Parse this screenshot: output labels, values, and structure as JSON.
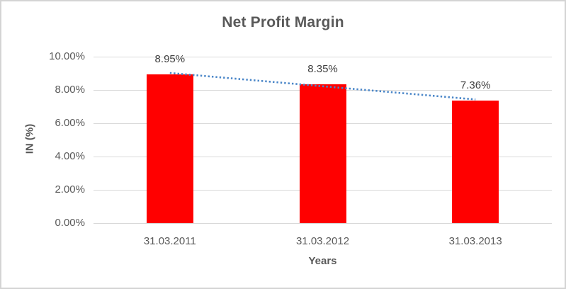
{
  "chart": {
    "colors": {
      "bar_fill": "#ff0000",
      "trendline": "#4a86c8",
      "gridline": "#d9d9d9",
      "title_text": "#595959",
      "axis_text": "#595959",
      "data_label_text": "#404040",
      "frame_border": "#d4d4d4",
      "background": "#ffffff"
    }
  },
  "chart_data": {
    "type": "bar",
    "title": "Net Profit Margin",
    "xlabel": "Years",
    "ylabel": "IN (%)",
    "categories": [
      "31.03.2011",
      "31.03.2012",
      "31.03.2013"
    ],
    "values": [
      8.95,
      8.35,
      7.36
    ],
    "data_labels": [
      "8.95%",
      "8.35%",
      "7.36%"
    ],
    "y_ticks": [
      {
        "value": 10,
        "label": "10.00%"
      },
      {
        "value": 8,
        "label": "8.00%"
      },
      {
        "value": 6,
        "label": "6.00%"
      },
      {
        "value": 4,
        "label": "4.00%"
      },
      {
        "value": 2,
        "label": "2.00%"
      },
      {
        "value": 0,
        "label": "0.00%"
      }
    ],
    "ylim": [
      0,
      10
    ],
    "grid": true,
    "legend": false,
    "trendline": {
      "type": "linear",
      "style": "dotted",
      "fitted_values": [
        9.02,
        8.22,
        7.43
      ]
    }
  }
}
